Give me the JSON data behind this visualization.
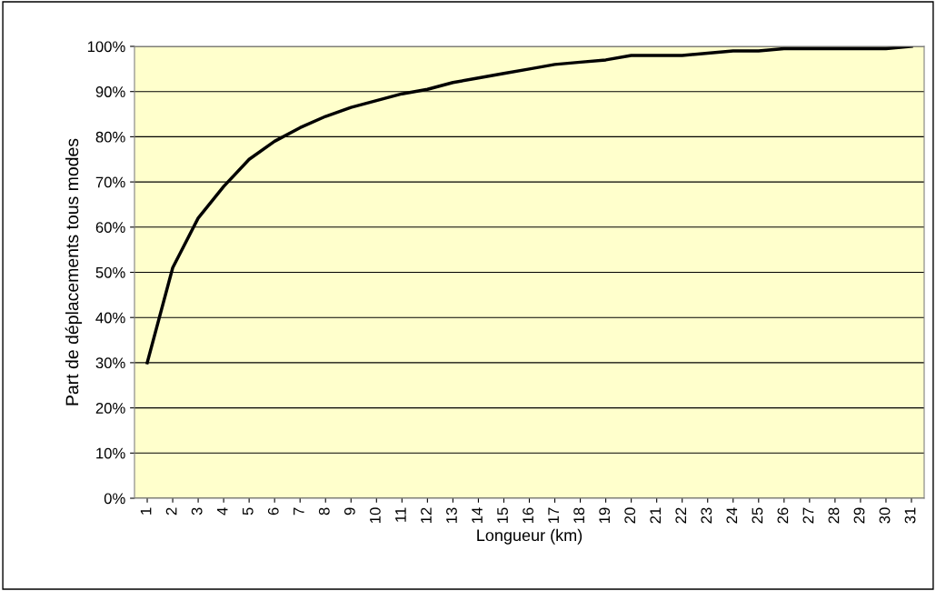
{
  "chart_data": {
    "type": "line",
    "xlabel": "Longueur (km)",
    "ylabel": "Part de déplacements tous modes",
    "categories": [
      "1",
      "2",
      "3",
      "4",
      "5",
      "6",
      "7",
      "8",
      "9",
      "10",
      "11",
      "12",
      "13",
      "14",
      "15",
      "16",
      "17",
      "18",
      "19",
      "20",
      "21",
      "22",
      "23",
      "24",
      "25",
      "26",
      "27",
      "28",
      "29",
      "30",
      "31"
    ],
    "series": [
      {
        "color": "#000000",
        "values": [
          30,
          51,
          62,
          69,
          75,
          79,
          82,
          84.5,
          86.5,
          88,
          89.5,
          90.5,
          92,
          93,
          94,
          95,
          96,
          96.5,
          97,
          98,
          98,
          98,
          98.5,
          99,
          99,
          99.5,
          99.5,
          99.5,
          99.5,
          99.5,
          100
        ]
      }
    ],
    "ylim": [
      0,
      100
    ],
    "yticks": [
      {
        "value": 0,
        "label": "0%"
      },
      {
        "value": 10,
        "label": "10%"
      },
      {
        "value": 20,
        "label": "20%"
      },
      {
        "value": 30,
        "label": "30%"
      },
      {
        "value": 40,
        "label": "40%"
      },
      {
        "value": 50,
        "label": "50%"
      },
      {
        "value": 60,
        "label": "60%"
      },
      {
        "value": 70,
        "label": "70%"
      },
      {
        "value": 80,
        "label": "80%"
      },
      {
        "value": 90,
        "label": "90%"
      },
      {
        "value": 100,
        "label": "100%"
      }
    ],
    "grid": "y",
    "legend": false,
    "marker": "none",
    "line_style": "solid"
  }
}
